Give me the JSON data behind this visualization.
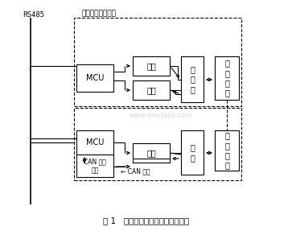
{
  "title": "图 1   电池组均充管理系统拓扑结构",
  "top_label": "分只同时均充管理",
  "rs485_label": "RS485",
  "background_color": "#ffffff",
  "watermark": "www.elecfans.com",
  "top_section": {
    "mcu_label": "MCU",
    "charge_label": "充电",
    "detect_label": "检测",
    "circuit_label": "主\n回\n路",
    "battery_label": "蓄\n电\n池\n组"
  },
  "bottom_section": {
    "mcu_label": "MCU",
    "detect_label": "检测",
    "circuit_label": "回\n路",
    "battery_label": "蓄\n电\n池\n组",
    "can_if_label": "CAN 总线\n接口",
    "can_bus_label": "← CAN 总线"
  }
}
